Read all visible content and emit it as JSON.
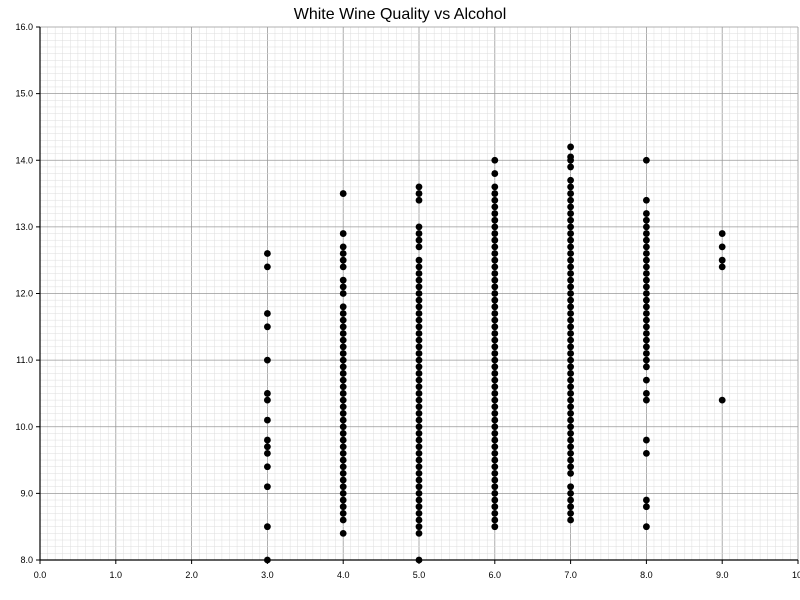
{
  "chart_data": {
    "type": "scatter",
    "title": "White Wine Quality vs Alcohol",
    "xlabel": "",
    "ylabel": "",
    "xlim": [
      0,
      10
    ],
    "ylim": [
      8,
      16
    ],
    "x_ticks": [
      {
        "value": 0,
        "label": "0.0"
      },
      {
        "value": 1,
        "label": "1.0"
      },
      {
        "value": 2,
        "label": "2.0"
      },
      {
        "value": 3,
        "label": "3.0"
      },
      {
        "value": 4,
        "label": "4.0"
      },
      {
        "value": 5,
        "label": "5.0"
      },
      {
        "value": 6,
        "label": "6.0"
      },
      {
        "value": 7,
        "label": "7.0"
      },
      {
        "value": 8,
        "label": "8.0"
      },
      {
        "value": 9,
        "label": "9.0"
      },
      {
        "value": 10,
        "label": "10"
      }
    ],
    "y_ticks": [
      {
        "value": 8,
        "label": "8.0"
      },
      {
        "value": 9,
        "label": "9.0"
      },
      {
        "value": 10,
        "label": "10.0"
      },
      {
        "value": 11,
        "label": "11.0"
      },
      {
        "value": 12,
        "label": "12.0"
      },
      {
        "value": 13,
        "label": "13.0"
      },
      {
        "value": 14,
        "label": "14.0"
      },
      {
        "value": 15,
        "label": "15.0"
      },
      {
        "value": 16,
        "label": "16.0"
      }
    ],
    "grid": true,
    "minor_grid_step": 0.1,
    "point_color": "#000000",
    "grid_major_color": "#999999",
    "grid_minor_color": "#dddddd",
    "axis_color": "#000000",
    "series": [
      {
        "points": [
          {
            "x": 3,
            "y": 8.0
          },
          {
            "x": 3,
            "y": 8.5
          },
          {
            "x": 3,
            "y": 9.1
          },
          {
            "x": 3,
            "y": 9.4
          },
          {
            "x": 3,
            "y": 9.6
          },
          {
            "x": 3,
            "y": 9.7
          },
          {
            "x": 3,
            "y": 9.8
          },
          {
            "x": 3,
            "y": 10.1
          },
          {
            "x": 3,
            "y": 10.4
          },
          {
            "x": 3,
            "y": 10.5
          },
          {
            "x": 3,
            "y": 11.0
          },
          {
            "x": 3,
            "y": 11.5
          },
          {
            "x": 3,
            "y": 11.7
          },
          {
            "x": 3,
            "y": 12.4
          },
          {
            "x": 3,
            "y": 12.6
          },
          {
            "x": 4,
            "y": 8.4
          },
          {
            "x": 4,
            "y": 8.6
          },
          {
            "x": 4,
            "y": 8.7
          },
          {
            "x": 4,
            "y": 8.8
          },
          {
            "x": 4,
            "y": 8.9
          },
          {
            "x": 4,
            "y": 9.0
          },
          {
            "x": 4,
            "y": 9.1
          },
          {
            "x": 4,
            "y": 9.2
          },
          {
            "x": 4,
            "y": 9.3
          },
          {
            "x": 4,
            "y": 9.4
          },
          {
            "x": 4,
            "y": 9.5
          },
          {
            "x": 4,
            "y": 9.6
          },
          {
            "x": 4,
            "y": 9.7
          },
          {
            "x": 4,
            "y": 9.8
          },
          {
            "x": 4,
            "y": 9.9
          },
          {
            "x": 4,
            "y": 10.0
          },
          {
            "x": 4,
            "y": 10.1
          },
          {
            "x": 4,
            "y": 10.2
          },
          {
            "x": 4,
            "y": 10.3
          },
          {
            "x": 4,
            "y": 10.4
          },
          {
            "x": 4,
            "y": 10.5
          },
          {
            "x": 4,
            "y": 10.6
          },
          {
            "x": 4,
            "y": 10.7
          },
          {
            "x": 4,
            "y": 10.8
          },
          {
            "x": 4,
            "y": 10.9
          },
          {
            "x": 4,
            "y": 11.0
          },
          {
            "x": 4,
            "y": 11.1
          },
          {
            "x": 4,
            "y": 11.2
          },
          {
            "x": 4,
            "y": 11.3
          },
          {
            "x": 4,
            "y": 11.4
          },
          {
            "x": 4,
            "y": 11.5
          },
          {
            "x": 4,
            "y": 11.6
          },
          {
            "x": 4,
            "y": 11.7
          },
          {
            "x": 4,
            "y": 11.8
          },
          {
            "x": 4,
            "y": 12.0
          },
          {
            "x": 4,
            "y": 12.1
          },
          {
            "x": 4,
            "y": 12.2
          },
          {
            "x": 4,
            "y": 12.4
          },
          {
            "x": 4,
            "y": 12.5
          },
          {
            "x": 4,
            "y": 12.6
          },
          {
            "x": 4,
            "y": 12.7
          },
          {
            "x": 4,
            "y": 12.9
          },
          {
            "x": 4,
            "y": 13.5
          },
          {
            "x": 5,
            "y": 8.0
          },
          {
            "x": 5,
            "y": 8.4
          },
          {
            "x": 5,
            "y": 8.5
          },
          {
            "x": 5,
            "y": 8.6
          },
          {
            "x": 5,
            "y": 8.7
          },
          {
            "x": 5,
            "y": 8.8
          },
          {
            "x": 5,
            "y": 8.9
          },
          {
            "x": 5,
            "y": 9.0
          },
          {
            "x": 5,
            "y": 9.1
          },
          {
            "x": 5,
            "y": 9.2
          },
          {
            "x": 5,
            "y": 9.3
          },
          {
            "x": 5,
            "y": 9.4
          },
          {
            "x": 5,
            "y": 9.5
          },
          {
            "x": 5,
            "y": 9.6
          },
          {
            "x": 5,
            "y": 9.7
          },
          {
            "x": 5,
            "y": 9.8
          },
          {
            "x": 5,
            "y": 9.9
          },
          {
            "x": 5,
            "y": 10.0
          },
          {
            "x": 5,
            "y": 10.1
          },
          {
            "x": 5,
            "y": 10.2
          },
          {
            "x": 5,
            "y": 10.3
          },
          {
            "x": 5,
            "y": 10.4
          },
          {
            "x": 5,
            "y": 10.5
          },
          {
            "x": 5,
            "y": 10.6
          },
          {
            "x": 5,
            "y": 10.7
          },
          {
            "x": 5,
            "y": 10.8
          },
          {
            "x": 5,
            "y": 10.9
          },
          {
            "x": 5,
            "y": 11.0
          },
          {
            "x": 5,
            "y": 11.1
          },
          {
            "x": 5,
            "y": 11.2
          },
          {
            "x": 5,
            "y": 11.3
          },
          {
            "x": 5,
            "y": 11.4
          },
          {
            "x": 5,
            "y": 11.5
          },
          {
            "x": 5,
            "y": 11.6
          },
          {
            "x": 5,
            "y": 11.7
          },
          {
            "x": 5,
            "y": 11.8
          },
          {
            "x": 5,
            "y": 11.9
          },
          {
            "x": 5,
            "y": 12.0
          },
          {
            "x": 5,
            "y": 12.1
          },
          {
            "x": 5,
            "y": 12.2
          },
          {
            "x": 5,
            "y": 12.3
          },
          {
            "x": 5,
            "y": 12.4
          },
          {
            "x": 5,
            "y": 12.5
          },
          {
            "x": 5,
            "y": 12.7
          },
          {
            "x": 5,
            "y": 12.8
          },
          {
            "x": 5,
            "y": 12.9
          },
          {
            "x": 5,
            "y": 13.0
          },
          {
            "x": 5,
            "y": 13.4
          },
          {
            "x": 5,
            "y": 13.5
          },
          {
            "x": 5,
            "y": 13.6
          },
          {
            "x": 6,
            "y": 8.5
          },
          {
            "x": 6,
            "y": 8.6
          },
          {
            "x": 6,
            "y": 8.7
          },
          {
            "x": 6,
            "y": 8.8
          },
          {
            "x": 6,
            "y": 8.9
          },
          {
            "x": 6,
            "y": 9.0
          },
          {
            "x": 6,
            "y": 9.1
          },
          {
            "x": 6,
            "y": 9.2
          },
          {
            "x": 6,
            "y": 9.3
          },
          {
            "x": 6,
            "y": 9.4
          },
          {
            "x": 6,
            "y": 9.5
          },
          {
            "x": 6,
            "y": 9.6
          },
          {
            "x": 6,
            "y": 9.7
          },
          {
            "x": 6,
            "y": 9.8
          },
          {
            "x": 6,
            "y": 9.9
          },
          {
            "x": 6,
            "y": 10.0
          },
          {
            "x": 6,
            "y": 10.1
          },
          {
            "x": 6,
            "y": 10.2
          },
          {
            "x": 6,
            "y": 10.3
          },
          {
            "x": 6,
            "y": 10.4
          },
          {
            "x": 6,
            "y": 10.5
          },
          {
            "x": 6,
            "y": 10.6
          },
          {
            "x": 6,
            "y": 10.7
          },
          {
            "x": 6,
            "y": 10.8
          },
          {
            "x": 6,
            "y": 10.9
          },
          {
            "x": 6,
            "y": 11.0
          },
          {
            "x": 6,
            "y": 11.1
          },
          {
            "x": 6,
            "y": 11.2
          },
          {
            "x": 6,
            "y": 11.3
          },
          {
            "x": 6,
            "y": 11.4
          },
          {
            "x": 6,
            "y": 11.5
          },
          {
            "x": 6,
            "y": 11.6
          },
          {
            "x": 6,
            "y": 11.7
          },
          {
            "x": 6,
            "y": 11.8
          },
          {
            "x": 6,
            "y": 11.9
          },
          {
            "x": 6,
            "y": 12.0
          },
          {
            "x": 6,
            "y": 12.1
          },
          {
            "x": 6,
            "y": 12.2
          },
          {
            "x": 6,
            "y": 12.3
          },
          {
            "x": 6,
            "y": 12.4
          },
          {
            "x": 6,
            "y": 12.5
          },
          {
            "x": 6,
            "y": 12.6
          },
          {
            "x": 6,
            "y": 12.7
          },
          {
            "x": 6,
            "y": 12.8
          },
          {
            "x": 6,
            "y": 12.9
          },
          {
            "x": 6,
            "y": 13.0
          },
          {
            "x": 6,
            "y": 13.1
          },
          {
            "x": 6,
            "y": 13.2
          },
          {
            "x": 6,
            "y": 13.3
          },
          {
            "x": 6,
            "y": 13.4
          },
          {
            "x": 6,
            "y": 13.5
          },
          {
            "x": 6,
            "y": 13.6
          },
          {
            "x": 6,
            "y": 13.8
          },
          {
            "x": 6,
            "y": 14.0
          },
          {
            "x": 7,
            "y": 8.6
          },
          {
            "x": 7,
            "y": 8.7
          },
          {
            "x": 7,
            "y": 8.8
          },
          {
            "x": 7,
            "y": 8.9
          },
          {
            "x": 7,
            "y": 9.0
          },
          {
            "x": 7,
            "y": 9.1
          },
          {
            "x": 7,
            "y": 9.3
          },
          {
            "x": 7,
            "y": 9.4
          },
          {
            "x": 7,
            "y": 9.5
          },
          {
            "x": 7,
            "y": 9.6
          },
          {
            "x": 7,
            "y": 9.7
          },
          {
            "x": 7,
            "y": 9.8
          },
          {
            "x": 7,
            "y": 9.9
          },
          {
            "x": 7,
            "y": 10.0
          },
          {
            "x": 7,
            "y": 10.1
          },
          {
            "x": 7,
            "y": 10.2
          },
          {
            "x": 7,
            "y": 10.3
          },
          {
            "x": 7,
            "y": 10.4
          },
          {
            "x": 7,
            "y": 10.5
          },
          {
            "x": 7,
            "y": 10.6
          },
          {
            "x": 7,
            "y": 10.7
          },
          {
            "x": 7,
            "y": 10.8
          },
          {
            "x": 7,
            "y": 10.9
          },
          {
            "x": 7,
            "y": 11.0
          },
          {
            "x": 7,
            "y": 11.1
          },
          {
            "x": 7,
            "y": 11.2
          },
          {
            "x": 7,
            "y": 11.3
          },
          {
            "x": 7,
            "y": 11.4
          },
          {
            "x": 7,
            "y": 11.5
          },
          {
            "x": 7,
            "y": 11.6
          },
          {
            "x": 7,
            "y": 11.7
          },
          {
            "x": 7,
            "y": 11.8
          },
          {
            "x": 7,
            "y": 11.9
          },
          {
            "x": 7,
            "y": 12.0
          },
          {
            "x": 7,
            "y": 12.1
          },
          {
            "x": 7,
            "y": 12.2
          },
          {
            "x": 7,
            "y": 12.3
          },
          {
            "x": 7,
            "y": 12.4
          },
          {
            "x": 7,
            "y": 12.5
          },
          {
            "x": 7,
            "y": 12.6
          },
          {
            "x": 7,
            "y": 12.7
          },
          {
            "x": 7,
            "y": 12.8
          },
          {
            "x": 7,
            "y": 12.9
          },
          {
            "x": 7,
            "y": 13.0
          },
          {
            "x": 7,
            "y": 13.1
          },
          {
            "x": 7,
            "y": 13.2
          },
          {
            "x": 7,
            "y": 13.3
          },
          {
            "x": 7,
            "y": 13.4
          },
          {
            "x": 7,
            "y": 13.5
          },
          {
            "x": 7,
            "y": 13.6
          },
          {
            "x": 7,
            "y": 13.7
          },
          {
            "x": 7,
            "y": 13.9
          },
          {
            "x": 7,
            "y": 14.0
          },
          {
            "x": 7,
            "y": 14.05
          },
          {
            "x": 7,
            "y": 14.2
          },
          {
            "x": 8,
            "y": 8.5
          },
          {
            "x": 8,
            "y": 8.8
          },
          {
            "x": 8,
            "y": 8.9
          },
          {
            "x": 8,
            "y": 9.6
          },
          {
            "x": 8,
            "y": 9.8
          },
          {
            "x": 8,
            "y": 10.4
          },
          {
            "x": 8,
            "y": 10.5
          },
          {
            "x": 8,
            "y": 10.7
          },
          {
            "x": 8,
            "y": 10.9
          },
          {
            "x": 8,
            "y": 11.0
          },
          {
            "x": 8,
            "y": 11.1
          },
          {
            "x": 8,
            "y": 11.2
          },
          {
            "x": 8,
            "y": 11.3
          },
          {
            "x": 8,
            "y": 11.4
          },
          {
            "x": 8,
            "y": 11.5
          },
          {
            "x": 8,
            "y": 11.6
          },
          {
            "x": 8,
            "y": 11.7
          },
          {
            "x": 8,
            "y": 11.8
          },
          {
            "x": 8,
            "y": 11.9
          },
          {
            "x": 8,
            "y": 12.0
          },
          {
            "x": 8,
            "y": 12.1
          },
          {
            "x": 8,
            "y": 12.2
          },
          {
            "x": 8,
            "y": 12.3
          },
          {
            "x": 8,
            "y": 12.4
          },
          {
            "x": 8,
            "y": 12.5
          },
          {
            "x": 8,
            "y": 12.6
          },
          {
            "x": 8,
            "y": 12.7
          },
          {
            "x": 8,
            "y": 12.8
          },
          {
            "x": 8,
            "y": 12.9
          },
          {
            "x": 8,
            "y": 13.0
          },
          {
            "x": 8,
            "y": 13.1
          },
          {
            "x": 8,
            "y": 13.2
          },
          {
            "x": 8,
            "y": 13.4
          },
          {
            "x": 8,
            "y": 14.0
          },
          {
            "x": 9,
            "y": 10.4
          },
          {
            "x": 9,
            "y": 12.4
          },
          {
            "x": 9,
            "y": 12.5
          },
          {
            "x": 9,
            "y": 12.7
          },
          {
            "x": 9,
            "y": 12.9
          }
        ]
      }
    ]
  }
}
